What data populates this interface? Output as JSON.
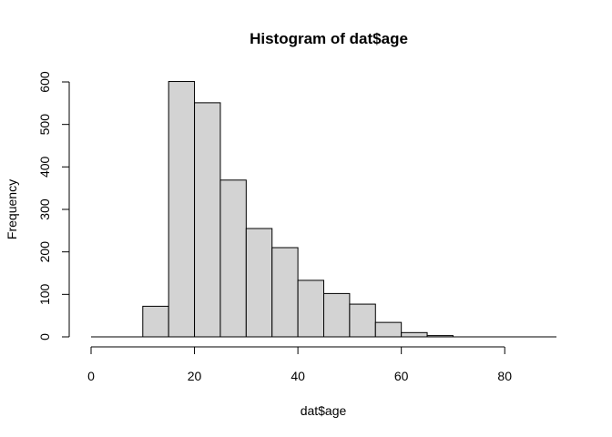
{
  "chart_data": {
    "type": "bar",
    "title": "Histogram of dat$age",
    "xlabel": "dat$age",
    "ylabel": "Frequency",
    "bins": [
      {
        "start": 0,
        "end": 5,
        "value": 0
      },
      {
        "start": 5,
        "end": 10,
        "value": 0
      },
      {
        "start": 10,
        "end": 15,
        "value": 72
      },
      {
        "start": 15,
        "end": 20,
        "value": 601
      },
      {
        "start": 20,
        "end": 25,
        "value": 551
      },
      {
        "start": 25,
        "end": 30,
        "value": 369
      },
      {
        "start": 30,
        "end": 35,
        "value": 255
      },
      {
        "start": 35,
        "end": 40,
        "value": 210
      },
      {
        "start": 40,
        "end": 45,
        "value": 133
      },
      {
        "start": 45,
        "end": 50,
        "value": 102
      },
      {
        "start": 50,
        "end": 55,
        "value": 77
      },
      {
        "start": 55,
        "end": 60,
        "value": 34
      },
      {
        "start": 60,
        "end": 65,
        "value": 10
      },
      {
        "start": 65,
        "end": 70,
        "value": 3
      },
      {
        "start": 70,
        "end": 75,
        "value": 0
      },
      {
        "start": 75,
        "end": 80,
        "value": 0
      },
      {
        "start": 80,
        "end": 85,
        "value": 0
      },
      {
        "start": 85,
        "end": 90,
        "value": 0
      }
    ],
    "xlim": [
      0,
      90
    ],
    "ylim": [
      0,
      600
    ],
    "x_ticks": [
      0,
      20,
      40,
      60,
      80
    ],
    "y_ticks": [
      0,
      100,
      200,
      300,
      400,
      500,
      600
    ],
    "grid": false,
    "colors": {
      "bar_fill": "#d3d3d3",
      "bar_stroke": "#000000"
    }
  }
}
